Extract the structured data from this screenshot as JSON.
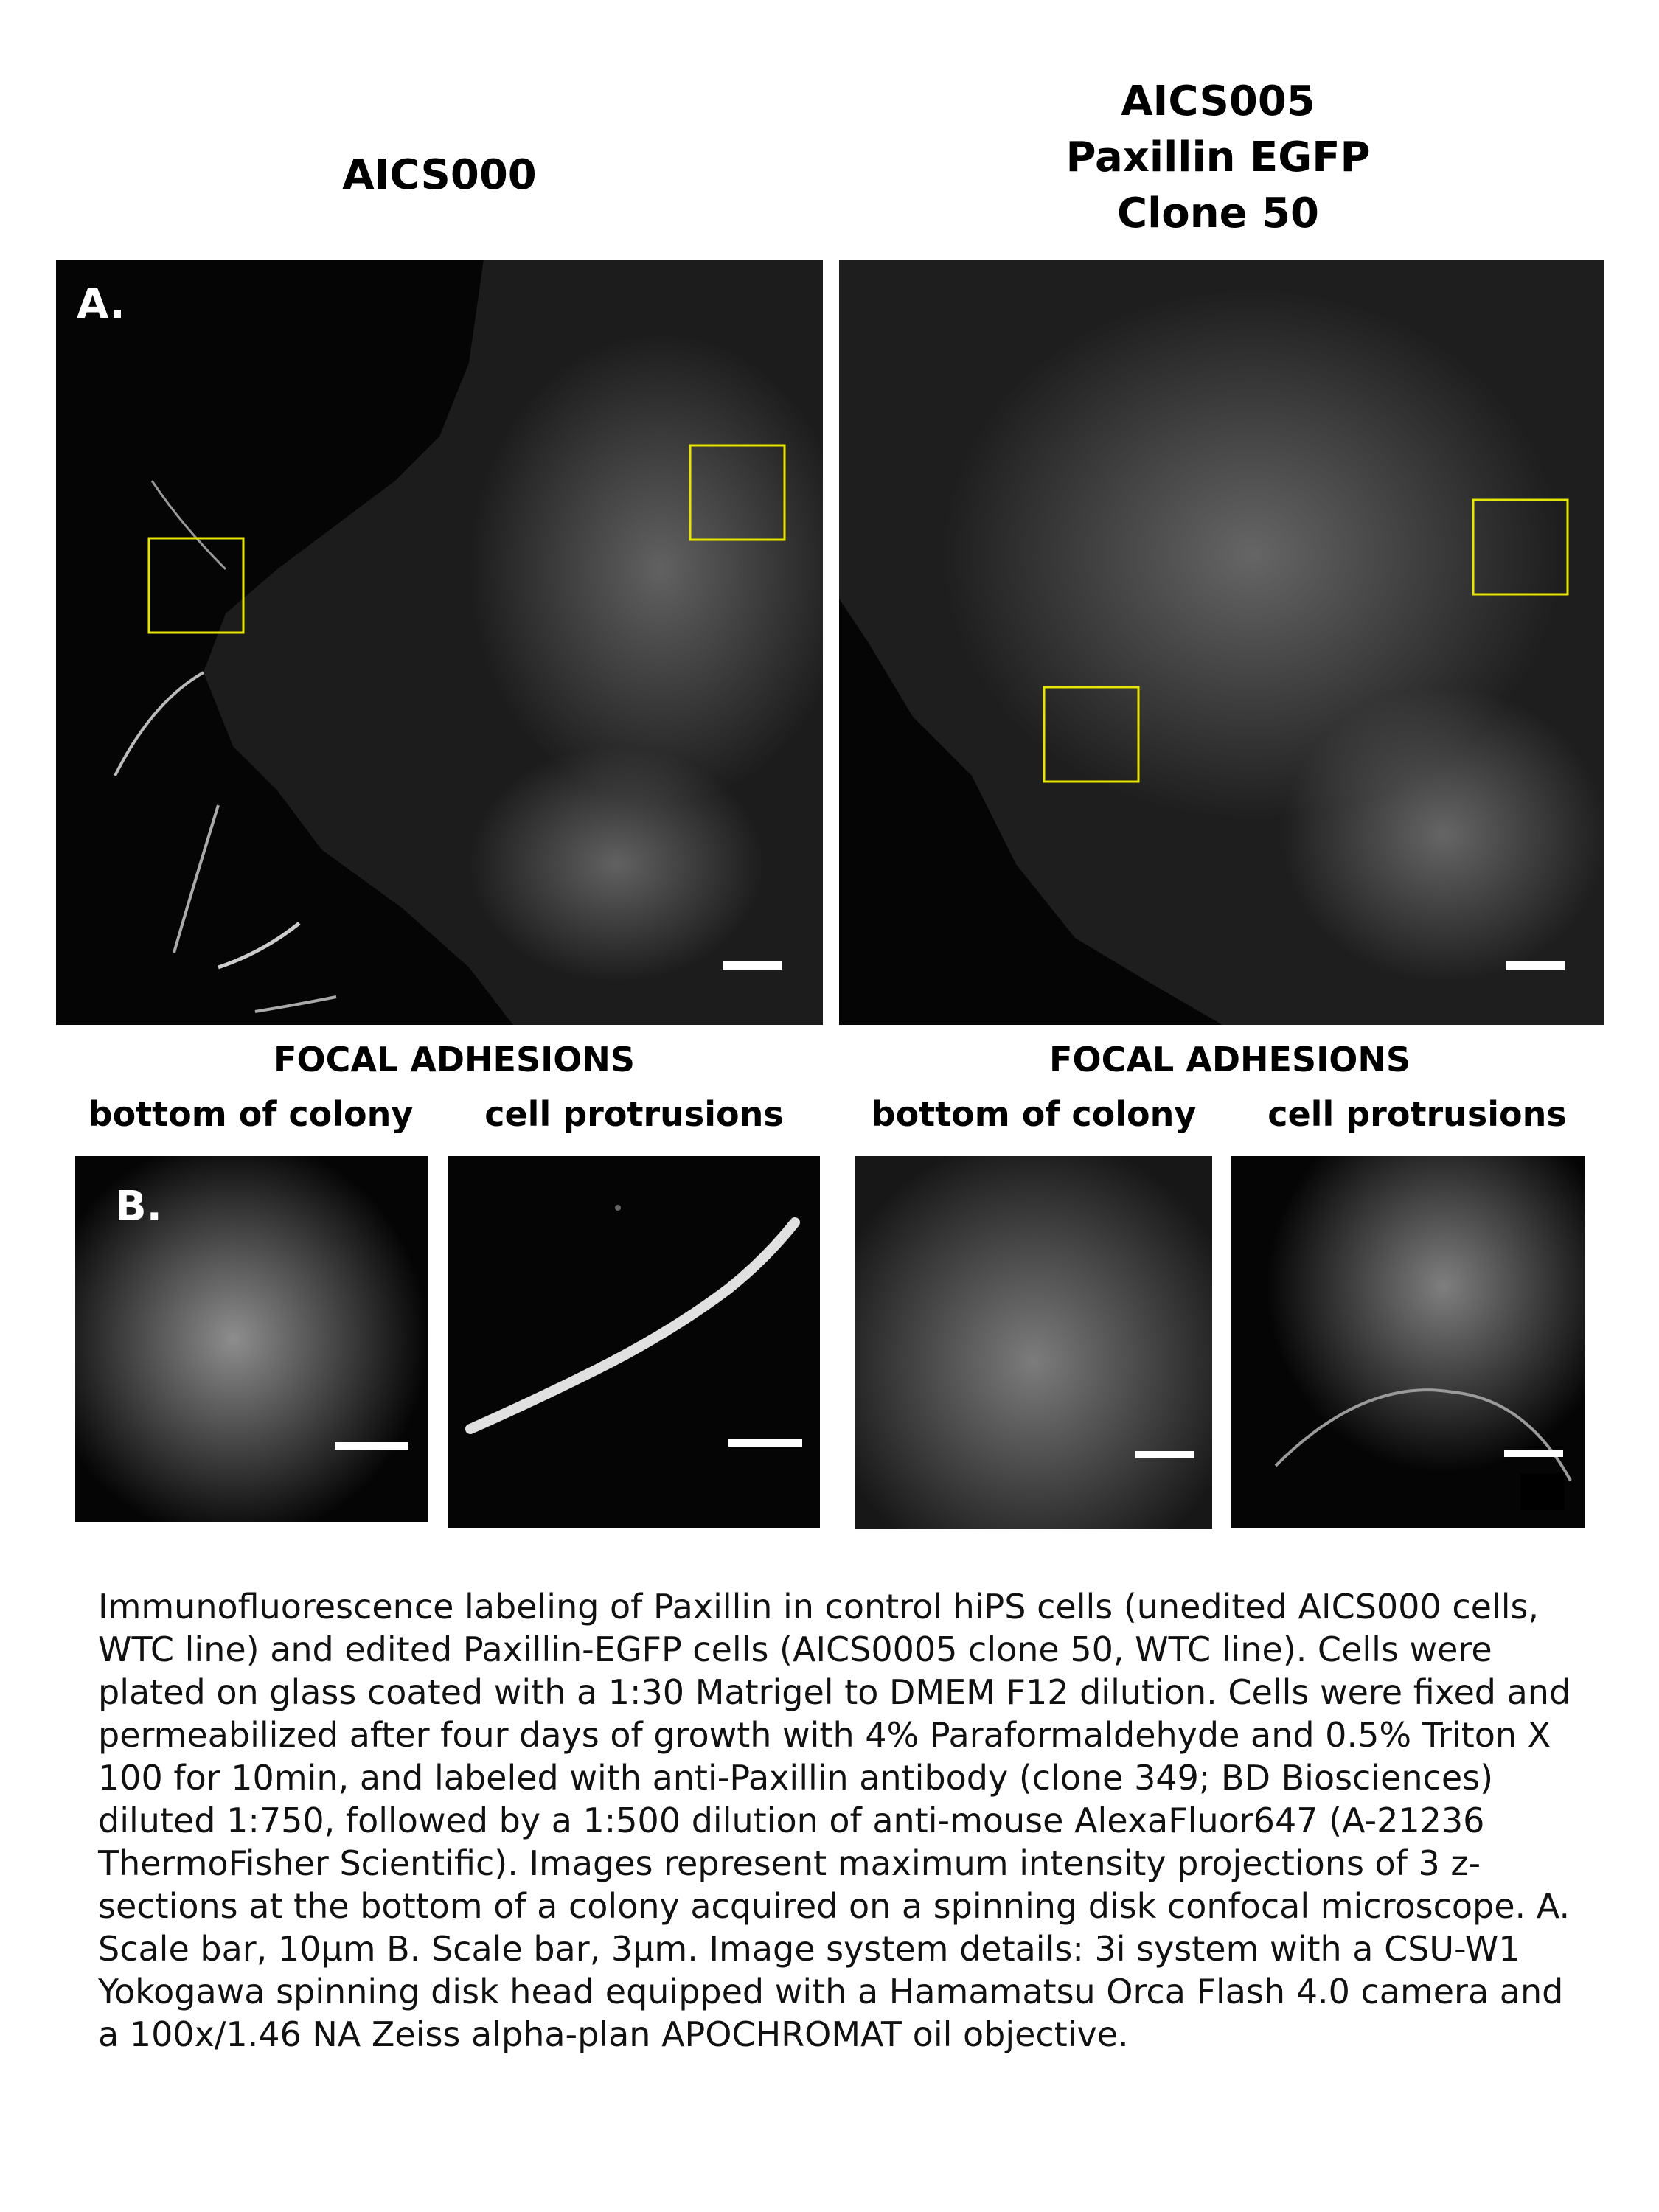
{
  "headers": {
    "left_title": "AICS000",
    "right_title_lines": [
      "AICS005",
      "Paxillin EGFP",
      "Clone 50"
    ]
  },
  "panel_labels": {
    "a": "A.",
    "b": "B."
  },
  "section": {
    "left_heading": "FOCAL ADHESIONS",
    "right_heading": "FOCAL ADHESIONS",
    "left_sub": [
      "bottom of colony",
      "cell protrusions"
    ],
    "right_sub": [
      "bottom of colony",
      "cell protrusions"
    ]
  },
  "colors": {
    "roi_box": "#e6e600",
    "scale_bar": "#ffffff",
    "background": "#050505"
  },
  "caption": "Immunofluorescence labeling of Paxillin in control hiPS cells (unedited AICS000 cells, WTC line) and edited Paxillin-EGFP cells (AICS0005 clone 50, WTC line).  Cells were plated on glass coated with a 1:30 Matrigel to DMEM F12 dilution. Cells were fixed and permeabilized after four days of growth with 4% Paraformaldehyde and 0.5% Triton X 100 for 10min, and labeled with anti-Paxillin antibody (clone 349; BD Biosciences) diluted 1:750, followed by a 1:500 dilution of anti-mouse AlexaFluor647 (A-21236 ThermoFisher Scientific).  Images represent maximum intensity projections of 3 z-sections at the bottom of a colony acquired on a spinning disk confocal microscope. A. Scale bar, 10μm B. Scale bar, 3μm.  Image system details: 3i system with a CSU-W1 Yokogawa spinning disk head equipped with a Hamamatsu Orca Flash 4.0 camera and a 100x/1.46 NA Zeiss alpha-plan APOCHROMAT oil objective."
}
